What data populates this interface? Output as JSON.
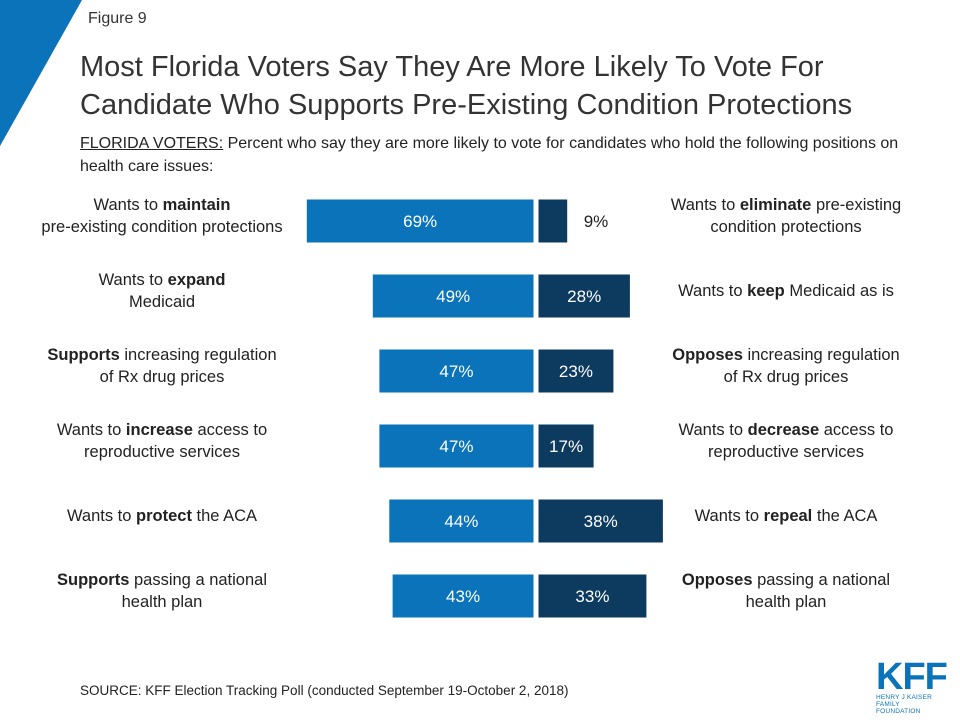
{
  "figure_label": "Figure 9",
  "title": "Most Florida Voters Say They Are More Likely To Vote For Candidate Who Supports Pre-Existing Condition Protections",
  "subtitle_lead": "FLORIDA VOTERS:",
  "subtitle_rest": " Percent who say they are more likely to vote for candidates who hold the following positions on health care issues:",
  "source": "SOURCE: KFF Election Tracking Poll (conducted September 19-October 2, 2018)",
  "logo": {
    "mark": "KFF",
    "line1": "HENRY J KAISER",
    "line2": "FAMILY FOUNDATION"
  },
  "colors": {
    "support": "#0a73b9",
    "oppose": "#0d3a5f",
    "accent": "#0a73b9",
    "bar_border": "#ffffff"
  },
  "chart_data": {
    "type": "bar",
    "orientation": "horizontal-diverging",
    "series": [
      {
        "name": "",
        "values": [
          69,
          49,
          47,
          47,
          44,
          43
        ]
      },
      {
        "name": "",
        "values": [
          9,
          28,
          23,
          17,
          38,
          33
        ]
      }
    ],
    "value_labels_left": [
      "69%",
      "49%",
      "47%",
      "47%",
      "44%",
      "43%"
    ],
    "value_labels_right": [
      "9%",
      "28%",
      "23%",
      "17%",
      "38%",
      "33%"
    ],
    "rows": [
      {
        "left_label": [
          [
            [
              "Wants to ",
              false
            ],
            [
              "maintain",
              true
            ]
          ],
          [
            [
              "pre-existing condition protections",
              false
            ]
          ]
        ],
        "right_label": [
          [
            [
              "Wants to ",
              false
            ],
            [
              "eliminate",
              true
            ],
            [
              " pre-existing",
              false
            ]
          ],
          [
            [
              "condition protections",
              false
            ]
          ]
        ]
      },
      {
        "left_label": [
          [
            [
              "Wants to ",
              false
            ],
            [
              "expand",
              true
            ]
          ],
          [
            [
              "Medicaid",
              false
            ]
          ]
        ],
        "right_label": [
          [
            [
              "Wants to ",
              false
            ],
            [
              "keep",
              true
            ],
            [
              " Medicaid as is",
              false
            ]
          ]
        ]
      },
      {
        "left_label": [
          [
            [
              "Supports",
              true
            ],
            [
              " increasing regulation",
              false
            ]
          ],
          [
            [
              "of Rx drug prices",
              false
            ]
          ]
        ],
        "right_label": [
          [
            [
              "Opposes",
              true
            ],
            [
              " increasing regulation",
              false
            ]
          ],
          [
            [
              "of Rx drug prices",
              false
            ]
          ]
        ]
      },
      {
        "left_label": [
          [
            [
              "Wants to ",
              false
            ],
            [
              "increase",
              true
            ],
            [
              " access to",
              false
            ]
          ],
          [
            [
              "reproductive services",
              false
            ]
          ]
        ],
        "right_label": [
          [
            [
              "Wants to ",
              false
            ],
            [
              "decrease",
              true
            ],
            [
              " access to",
              false
            ]
          ],
          [
            [
              "reproductive services",
              false
            ]
          ]
        ]
      },
      {
        "left_label": [
          [
            [
              "Wants to ",
              false
            ],
            [
              "protect",
              true
            ],
            [
              " the ACA",
              false
            ]
          ]
        ],
        "right_label": [
          [
            [
              "Wants to ",
              false
            ],
            [
              "repeal",
              true
            ],
            [
              " the ACA",
              false
            ]
          ]
        ]
      },
      {
        "left_label": [
          [
            [
              "Supports",
              true
            ],
            [
              " passing a national",
              false
            ]
          ],
          [
            [
              "health plan",
              false
            ]
          ]
        ],
        "right_label": [
          [
            [
              "Opposes",
              true
            ],
            [
              " passing a national",
              false
            ]
          ],
          [
            [
              "health plan",
              false
            ]
          ]
        ]
      }
    ]
  }
}
